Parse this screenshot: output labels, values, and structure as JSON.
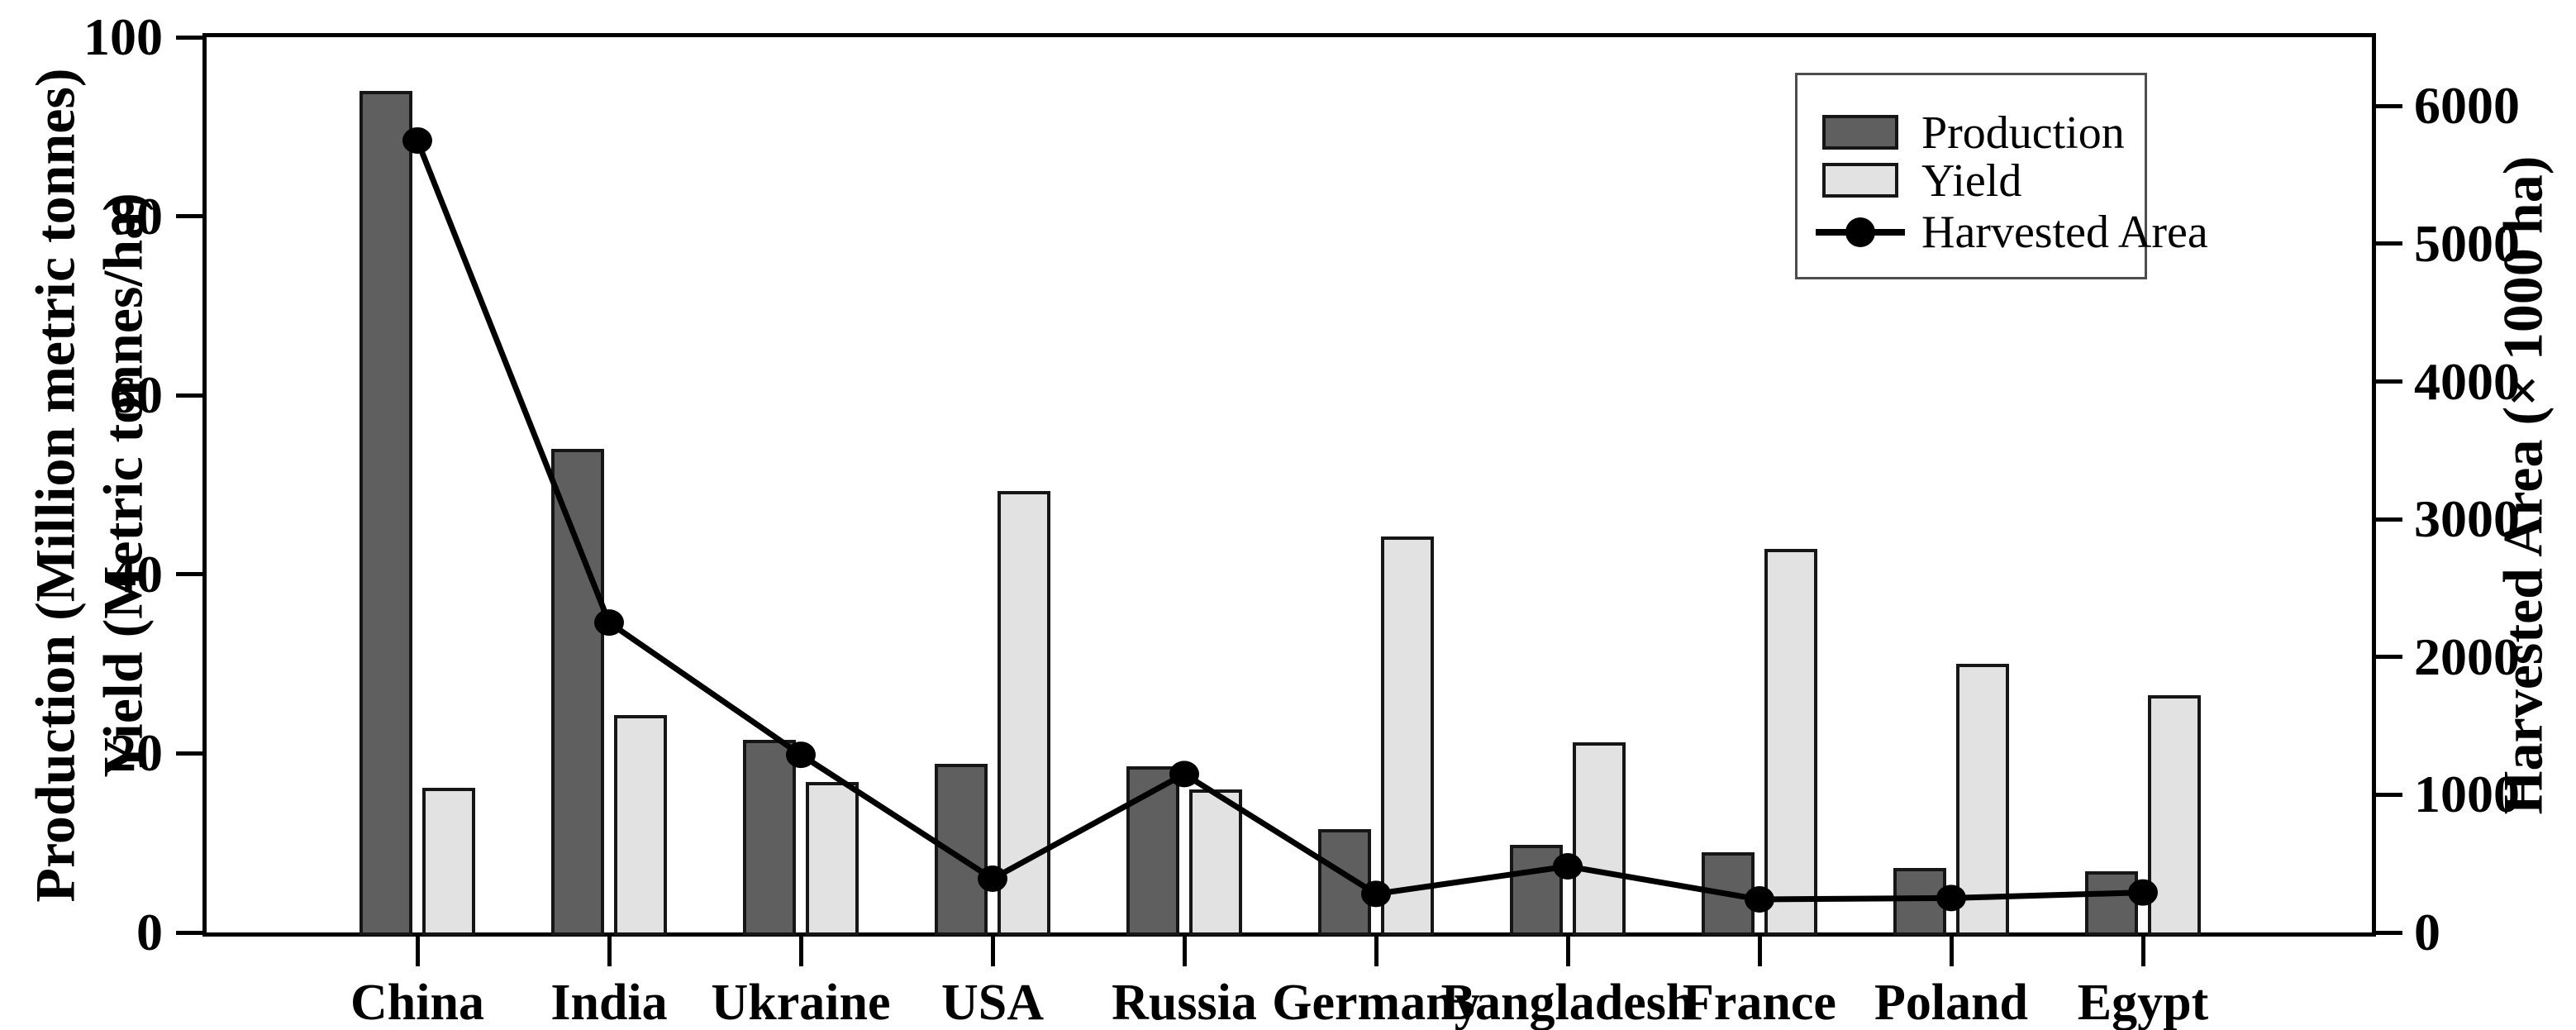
{
  "chart_data": {
    "type": "bar+line combo",
    "title": "",
    "categories": [
      "China",
      "India",
      "Ukraine",
      "USA",
      "Russia",
      "Germany",
      "Bangladesh",
      "France",
      "Poland",
      "Egypt"
    ],
    "series": [
      {
        "name": "Production",
        "type": "bar",
        "axis": "left",
        "values": [
          94,
          54,
          21.5,
          18.8,
          18.6,
          11.5,
          9.8,
          9.0,
          7.2,
          6.8
        ]
      },
      {
        "name": "Yield",
        "type": "bar",
        "axis": "left",
        "values": [
          16.2,
          24.3,
          16.8,
          49.3,
          16.0,
          44.2,
          21.2,
          42.8,
          30.0,
          26.5
        ]
      },
      {
        "name": "Harvested Area",
        "type": "line",
        "axis": "right",
        "values": [
          5750,
          2250,
          1290,
          390,
          1150,
          280,
          480,
          240,
          250,
          290
        ]
      }
    ],
    "left_axis": {
      "label_line1": "Production (Million metric tonnes)",
      "label_line2": "Yield (Metric tonnes/ha)",
      "min": 0,
      "max": 100,
      "ticks": [
        0,
        20,
        40,
        60,
        80,
        100
      ]
    },
    "right_axis": {
      "label": "Harvested Area (× 1000 ha)",
      "min": 0,
      "max": 6500,
      "ticks": [
        0,
        1000,
        2000,
        3000,
        4000,
        5000,
        6000
      ]
    },
    "legend": {
      "position": "top-right",
      "items": [
        {
          "label": "Production",
          "swatch": "bar-dark"
        },
        {
          "label": "Yield",
          "swatch": "bar-light"
        },
        {
          "label": "Harvested Area",
          "swatch": "line-marker"
        }
      ]
    },
    "grid": false,
    "colors": {
      "production_fill": "#5f5f5f",
      "yield_fill": "#e2e2e2",
      "bar_border": "#161616",
      "line": "#000000",
      "marker": "#000000",
      "legend_border": "#4d4d4d",
      "text": "#000000",
      "background": "#ffffff"
    }
  }
}
